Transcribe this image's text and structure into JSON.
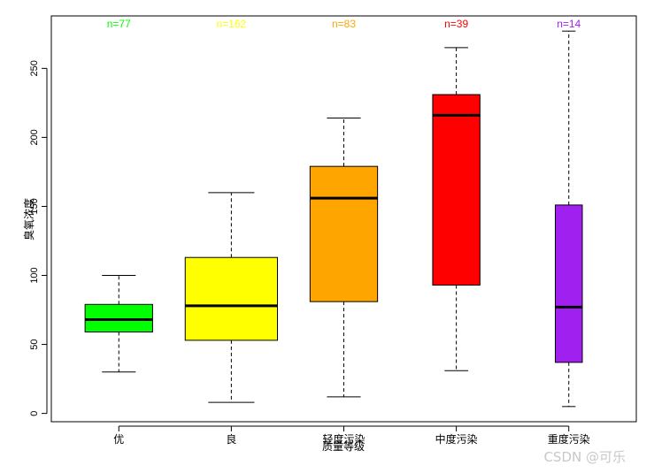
{
  "chart_data": {
    "type": "boxplot",
    "title": "",
    "xlabel": "质量等级",
    "ylabel": "臭氧浓度",
    "ylim": [
      -6,
      288
    ],
    "yticks": [
      0,
      50,
      100,
      150,
      200,
      250
    ],
    "categories": [
      "优",
      "良",
      "轻度污染",
      "中度污染",
      "重度污染"
    ],
    "boxes": [
      {
        "name": "优",
        "count_label": "n=77",
        "color": "#00ff00",
        "whisker_low": 30,
        "q1": 59,
        "median": 68,
        "q3": 79,
        "whisker_high": 100,
        "width_rel": 0.6
      },
      {
        "name": "良",
        "count_label": "n=162",
        "color": "#ffff00",
        "whisker_low": 8,
        "q1": 53,
        "median": 78,
        "q3": 113,
        "whisker_high": 160,
        "width_rel": 0.82
      },
      {
        "name": "轻度污染",
        "count_label": "n=83",
        "color": "#ffa500",
        "whisker_low": 12,
        "q1": 81,
        "median": 156,
        "q3": 179,
        "whisker_high": 214,
        "width_rel": 0.6
      },
      {
        "name": "中度污染",
        "count_label": "n=39",
        "color": "#ff0000",
        "whisker_low": 31,
        "q1": 93,
        "median": 216,
        "q3": 231,
        "whisker_high": 265,
        "width_rel": 0.42
      },
      {
        "name": "重度污染",
        "count_label": "n=14",
        "color": "#a020f0",
        "whisker_low": 5,
        "q1": 37,
        "median": 77,
        "q3": 151,
        "whisker_high": 277,
        "width_rel": 0.24
      }
    ],
    "grid": false,
    "legend": "none"
  },
  "watermark": "CSDN @可乐"
}
